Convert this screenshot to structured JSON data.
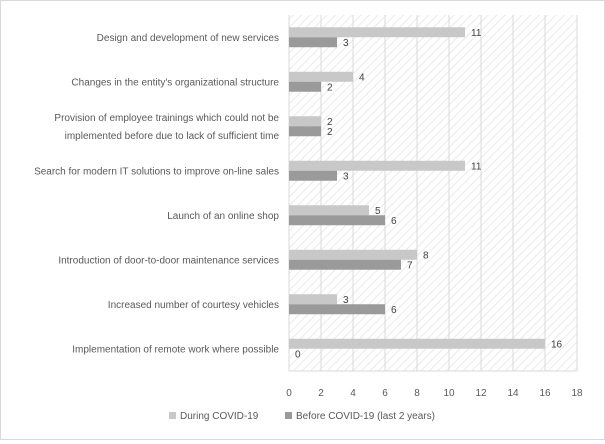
{
  "chart_data": {
    "type": "bar",
    "orientation": "horizontal",
    "title": "",
    "xlabel": "",
    "ylabel": "",
    "xlim": [
      0,
      18
    ],
    "x_ticks": [
      0,
      2,
      4,
      6,
      8,
      10,
      12,
      14,
      16,
      18
    ],
    "grid": "vertical",
    "legend_position": "bottom",
    "categories": [
      [
        "Design and development of new services"
      ],
      [
        "Changes in the entity's organizational structure"
      ],
      [
        "Provision of employee trainings which could not be",
        "implemented before due to lack of sufficient time"
      ],
      [
        "Search for modern IT solutions to improve on-line sales"
      ],
      [
        "Launch of an online shop"
      ],
      [
        "Introduction of door-to-door maintenance services"
      ],
      [
        "Increased number of courtesy vehicles"
      ],
      [
        "Implementation of remote work where possible"
      ]
    ],
    "series": [
      {
        "name": "During COVID-19",
        "color": "#c8c8c8",
        "values": [
          11,
          4,
          2,
          11,
          5,
          8,
          3,
          16
        ]
      },
      {
        "name": "Before COVID-19 (last 2 years)",
        "color": "#9a9a9a",
        "values": [
          3,
          2,
          2,
          3,
          6,
          7,
          6,
          0
        ]
      }
    ]
  },
  "colors": {
    "plot_hatch": "#e6e6e6",
    "gridline": "#d9d9d9",
    "text": "#595959"
  }
}
